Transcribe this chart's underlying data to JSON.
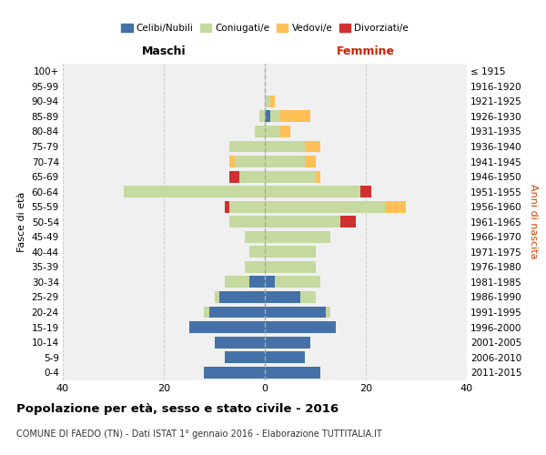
{
  "age_groups": [
    "0-4",
    "5-9",
    "10-14",
    "15-19",
    "20-24",
    "25-29",
    "30-34",
    "35-39",
    "40-44",
    "45-49",
    "50-54",
    "55-59",
    "60-64",
    "65-69",
    "70-74",
    "75-79",
    "80-84",
    "85-89",
    "90-94",
    "95-99",
    "100+"
  ],
  "birth_years": [
    "2011-2015",
    "2006-2010",
    "2001-2005",
    "1996-2000",
    "1991-1995",
    "1986-1990",
    "1981-1985",
    "1976-1980",
    "1971-1975",
    "1966-1970",
    "1961-1965",
    "1956-1960",
    "1951-1955",
    "1946-1950",
    "1941-1945",
    "1936-1940",
    "1931-1935",
    "1926-1930",
    "1921-1925",
    "1916-1920",
    "≤ 1915"
  ],
  "males": {
    "celibi": [
      12,
      8,
      10,
      15,
      11,
      9,
      3,
      0,
      0,
      0,
      0,
      0,
      0,
      0,
      0,
      0,
      0,
      0,
      0,
      0,
      0
    ],
    "coniugati": [
      0,
      0,
      0,
      0,
      1,
      1,
      5,
      4,
      3,
      4,
      7,
      7,
      28,
      5,
      6,
      7,
      2,
      1,
      0,
      0,
      0
    ],
    "vedovi": [
      0,
      0,
      0,
      0,
      0,
      0,
      0,
      0,
      0,
      0,
      0,
      0,
      0,
      0,
      1,
      0,
      0,
      0,
      0,
      0,
      0
    ],
    "divorziati": [
      0,
      0,
      0,
      0,
      0,
      0,
      0,
      0,
      0,
      0,
      0,
      1,
      0,
      2,
      0,
      0,
      0,
      0,
      0,
      0,
      0
    ]
  },
  "females": {
    "nubili": [
      11,
      8,
      9,
      14,
      12,
      7,
      2,
      0,
      0,
      0,
      0,
      0,
      0,
      0,
      0,
      0,
      0,
      1,
      0,
      0,
      0
    ],
    "coniugate": [
      0,
      0,
      0,
      0,
      1,
      3,
      9,
      10,
      10,
      13,
      15,
      24,
      19,
      10,
      8,
      8,
      3,
      2,
      1,
      0,
      0
    ],
    "vedove": [
      0,
      0,
      0,
      0,
      0,
      0,
      0,
      0,
      0,
      0,
      0,
      4,
      0,
      1,
      2,
      3,
      2,
      6,
      1,
      0,
      0
    ],
    "divorziate": [
      0,
      0,
      0,
      0,
      0,
      0,
      0,
      0,
      0,
      0,
      3,
      0,
      2,
      0,
      0,
      0,
      0,
      0,
      0,
      0,
      0
    ]
  },
  "colors": {
    "celibi": "#4472a8",
    "coniugati": "#c5d9a0",
    "vedovi": "#ffc055",
    "divorziati": "#d03030"
  },
  "xlim": 40,
  "title": "Popolazione per età, sesso e stato civile - 2016",
  "subtitle": "COMUNE DI FAEDO (TN) - Dati ISTAT 1° gennaio 2016 - Elaborazione TUTTITALIA.IT",
  "ylabel_left": "Fasce di età",
  "ylabel_right": "Anni di nascita",
  "xlabel_maschi": "Maschi",
  "xlabel_femmine": "Femmine",
  "bg_color": "#f0f0f0",
  "grid_color": "#cccccc"
}
